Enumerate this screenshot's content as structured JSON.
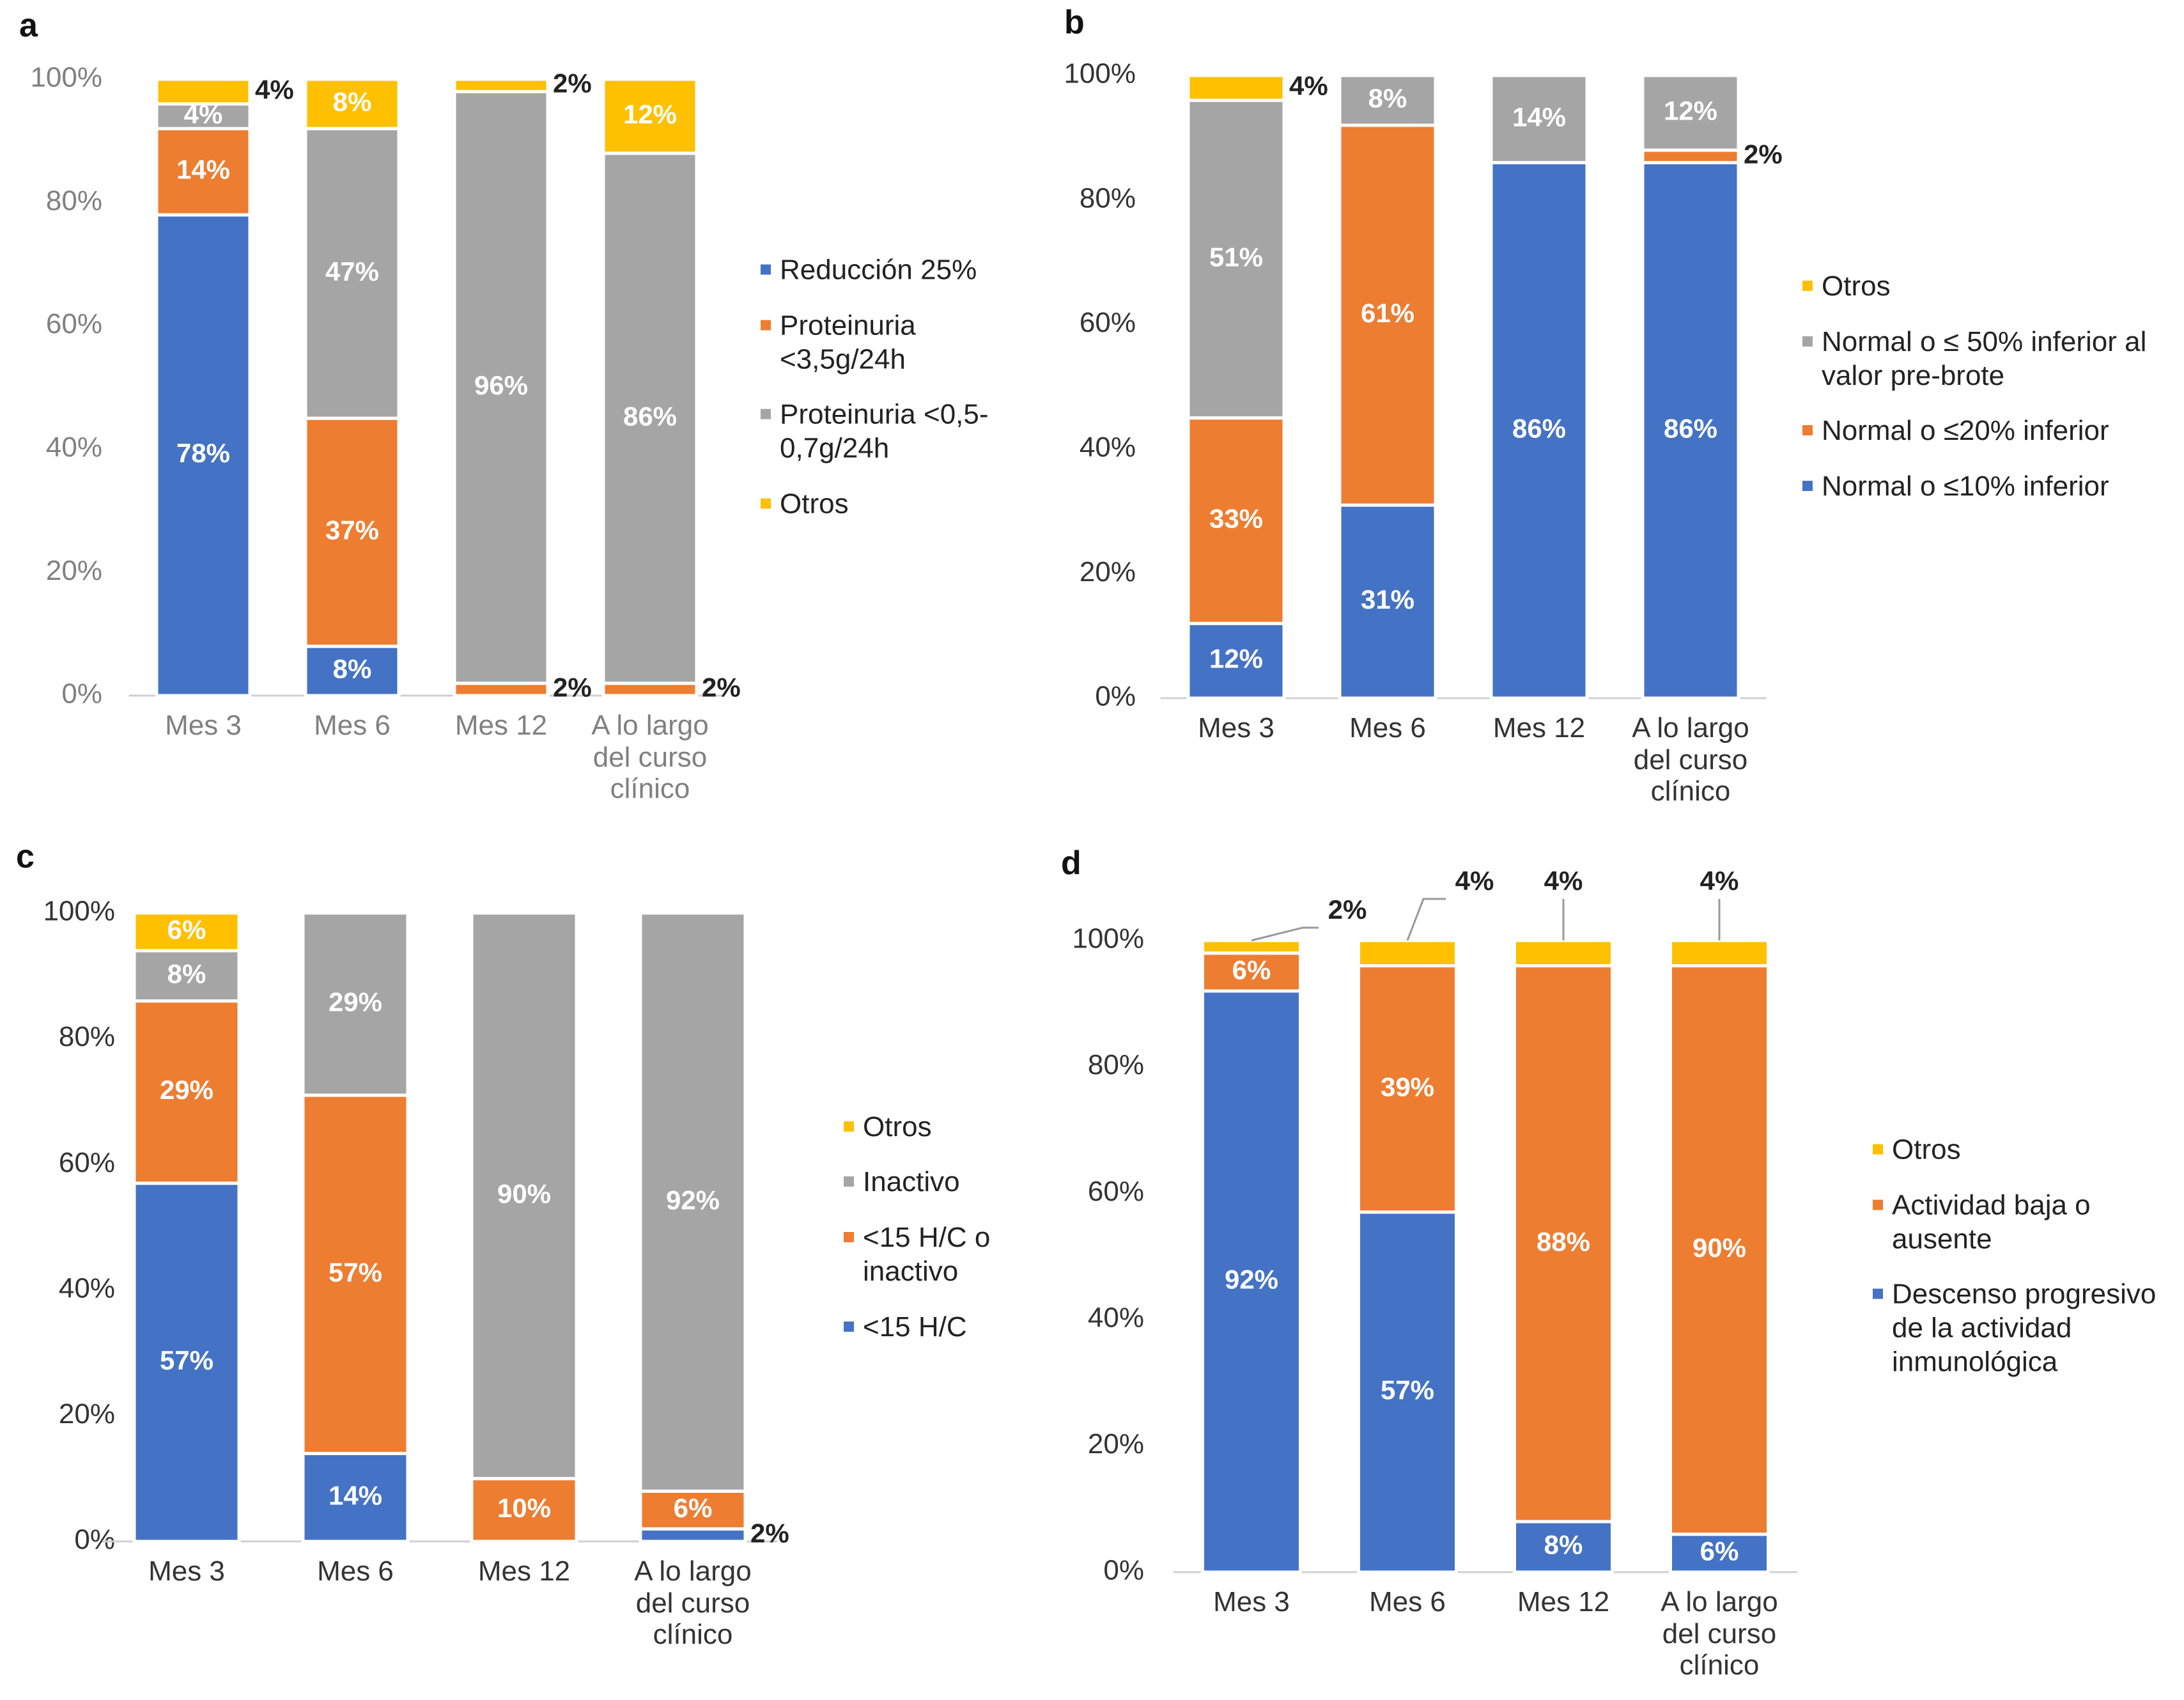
{
  "chart_data": [
    {
      "type": "stacked_bar",
      "title": "a",
      "categories": [
        "Mes 3",
        "Mes 6",
        "Mes 12",
        "A lo largo del curso clínico"
      ],
      "ylim": [
        0,
        100
      ],
      "yticks": [
        {
          "value": 0,
          "label": "0%"
        },
        {
          "value": 20,
          "label": "20%"
        },
        {
          "value": 40,
          "label": "40%"
        },
        {
          "value": 60,
          "label": "60%"
        },
        {
          "value": 80,
          "label": "80%"
        },
        {
          "value": 100,
          "label": "100%"
        }
      ],
      "grid": false,
      "legend": "right",
      "legend_reversed": false,
      "label_color": "#808080",
      "series": [
        {
          "name": "Reducción 25%",
          "color": "#4472c4",
          "values": [
            78,
            8,
            null,
            null
          ],
          "value_labels": [
            "78%",
            "8%",
            null,
            null
          ]
        },
        {
          "name": "Proteinuria <3,5g/24h",
          "color": "#ed7d31",
          "values": [
            14,
            37,
            2,
            2
          ],
          "value_labels": [
            "14%",
            "37%",
            "2%",
            "2%"
          ]
        },
        {
          "name": "Proteinuria <0,5-0,7g/24h",
          "color": "#a5a5a5",
          "values": [
            4,
            47,
            96,
            86
          ],
          "value_labels": [
            "4%",
            "47%",
            "96%",
            "86%"
          ]
        },
        {
          "name": "Otros",
          "color": "#ffc000",
          "values": [
            4,
            8,
            2,
            12
          ],
          "value_labels": [
            "4%",
            "8%",
            "2%",
            "12%"
          ]
        }
      ]
    },
    {
      "type": "stacked_bar",
      "title": "b",
      "categories": [
        "Mes 3",
        "Mes 6",
        "Mes 12",
        "A lo largo del curso clínico"
      ],
      "ylim": [
        0,
        100
      ],
      "yticks": [
        {
          "value": 0,
          "label": "0%"
        },
        {
          "value": 20,
          "label": "20%"
        },
        {
          "value": 40,
          "label": "40%"
        },
        {
          "value": 60,
          "label": "60%"
        },
        {
          "value": 80,
          "label": "80%"
        },
        {
          "value": 100,
          "label": "100%"
        }
      ],
      "grid": false,
      "legend": "right",
      "legend_reversed": true,
      "label_color": "#333333",
      "series": [
        {
          "name": "Normal o ≤10% inferior",
          "color": "#4472c4",
          "values": [
            12,
            31,
            86,
            86
          ],
          "value_labels": [
            "12%",
            "31%",
            "86%",
            "86%"
          ]
        },
        {
          "name": "Normal o ≤20% inferior",
          "color": "#ed7d31",
          "values": [
            33,
            61,
            null,
            2
          ],
          "value_labels": [
            "33%",
            "61%",
            null,
            "2%"
          ]
        },
        {
          "name": "Normal o ≤ 50% inferior al valor pre-brote",
          "color": "#a5a5a5",
          "values": [
            51,
            8,
            14,
            12
          ],
          "value_labels": [
            "51%",
            "8%",
            "14%",
            "12%"
          ]
        },
        {
          "name": "Otros",
          "color": "#ffc000",
          "values": [
            4,
            null,
            null,
            null
          ],
          "value_labels": [
            "4%",
            null,
            null,
            null
          ]
        }
      ]
    },
    {
      "type": "stacked_bar",
      "title": "c",
      "categories": [
        "Mes 3",
        "Mes 6",
        "Mes 12",
        "A lo largo del curso clínico"
      ],
      "ylim": [
        0,
        100
      ],
      "yticks": [
        {
          "value": 0,
          "label": "0%"
        },
        {
          "value": 20,
          "label": "20%"
        },
        {
          "value": 40,
          "label": "40%"
        },
        {
          "value": 60,
          "label": "60%"
        },
        {
          "value": 80,
          "label": "80%"
        },
        {
          "value": 100,
          "label": "100%"
        }
      ],
      "grid": false,
      "legend": "right",
      "legend_reversed": true,
      "label_color": "#333333",
      "series": [
        {
          "name": "<15 H/C",
          "color": "#4472c4",
          "values": [
            57,
            14,
            null,
            2
          ],
          "value_labels": [
            "57%",
            "14%",
            null,
            "2%"
          ]
        },
        {
          "name": "<15 H/C o inactivo",
          "color": "#ed7d31",
          "values": [
            29,
            57,
            10,
            6
          ],
          "value_labels": [
            "29%",
            "57%",
            "10%",
            "6%"
          ]
        },
        {
          "name": "Inactivo",
          "color": "#a5a5a5",
          "values": [
            8,
            29,
            90,
            92
          ],
          "value_labels": [
            "8%",
            "29%",
            "90%",
            "92%"
          ]
        },
        {
          "name": "Otros",
          "color": "#ffc000",
          "values": [
            6,
            null,
            null,
            null
          ],
          "value_labels": [
            "6%",
            null,
            null,
            null
          ]
        }
      ]
    },
    {
      "type": "stacked_bar",
      "title": "d",
      "categories": [
        "Mes 3",
        "Mes 6",
        "Mes 12",
        "A lo largo del curso clínico"
      ],
      "ylim": [
        0,
        100
      ],
      "yticks": [
        {
          "value": 0,
          "label": "0%"
        },
        {
          "value": 20,
          "label": "20%"
        },
        {
          "value": 40,
          "label": "40%"
        },
        {
          "value": 60,
          "label": "60%"
        },
        {
          "value": 80,
          "label": "80%"
        },
        {
          "value": 100,
          "label": "100%"
        }
      ],
      "grid": false,
      "legend": "right",
      "legend_reversed": true,
      "label_color": "#333333",
      "series": [
        {
          "name": "Descenso progresivo de la actividad inmunológica",
          "color": "#4472c4",
          "values": [
            92,
            57,
            8,
            6
          ],
          "value_labels": [
            "92%",
            "57%",
            "8%",
            "6%"
          ]
        },
        {
          "name": "Actividad baja o ausente",
          "color": "#ed7d31",
          "values": [
            6,
            39,
            88,
            90
          ],
          "value_labels": [
            "6%",
            "39%",
            "88%",
            "90%"
          ]
        },
        {
          "name": "Otros",
          "color": "#ffc000",
          "values": [
            2,
            4,
            4,
            4
          ],
          "value_labels": [
            "2%",
            "4%",
            "4%",
            "4%"
          ]
        }
      ]
    }
  ]
}
